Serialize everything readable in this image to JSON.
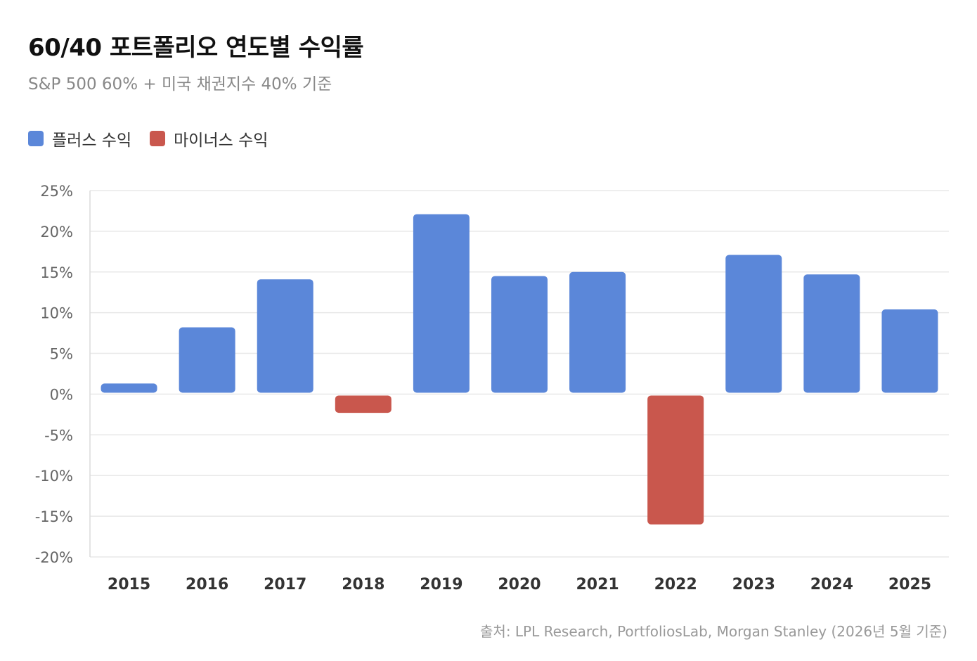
{
  "header": {
    "title": "60/40 포트폴리오 연도별 수익률",
    "subtitle": "S&P 500 60% + 미국 채권지수 40% 기준"
  },
  "legend": {
    "positive_label": "플러스 수익",
    "negative_label": "마이너스 수익",
    "positive_color": "#5B87D9",
    "negative_color": "#C9574D"
  },
  "source": "출처: LPL Research, PortfoliosLab, Morgan Stanley (2026년 5월 기준)",
  "chart_data": {
    "type": "bar",
    "categories": [
      "2015",
      "2016",
      "2017",
      "2018",
      "2019",
      "2020",
      "2021",
      "2022",
      "2023",
      "2024",
      "2025"
    ],
    "values": [
      1.3,
      8.2,
      14.1,
      -2.3,
      22.1,
      14.5,
      15.0,
      -16.0,
      17.1,
      14.7,
      10.4
    ],
    "ylim": [
      -20,
      25
    ],
    "yticks": [
      25,
      20,
      15,
      10,
      5,
      0,
      -5,
      -10,
      -15,
      -20
    ],
    "ytick_labels": [
      "25%",
      "20%",
      "15%",
      "10%",
      "5%",
      "0%",
      "-5%",
      "-10%",
      "-15%",
      "-20%"
    ],
    "grid": true,
    "legend_position": "top-left"
  }
}
